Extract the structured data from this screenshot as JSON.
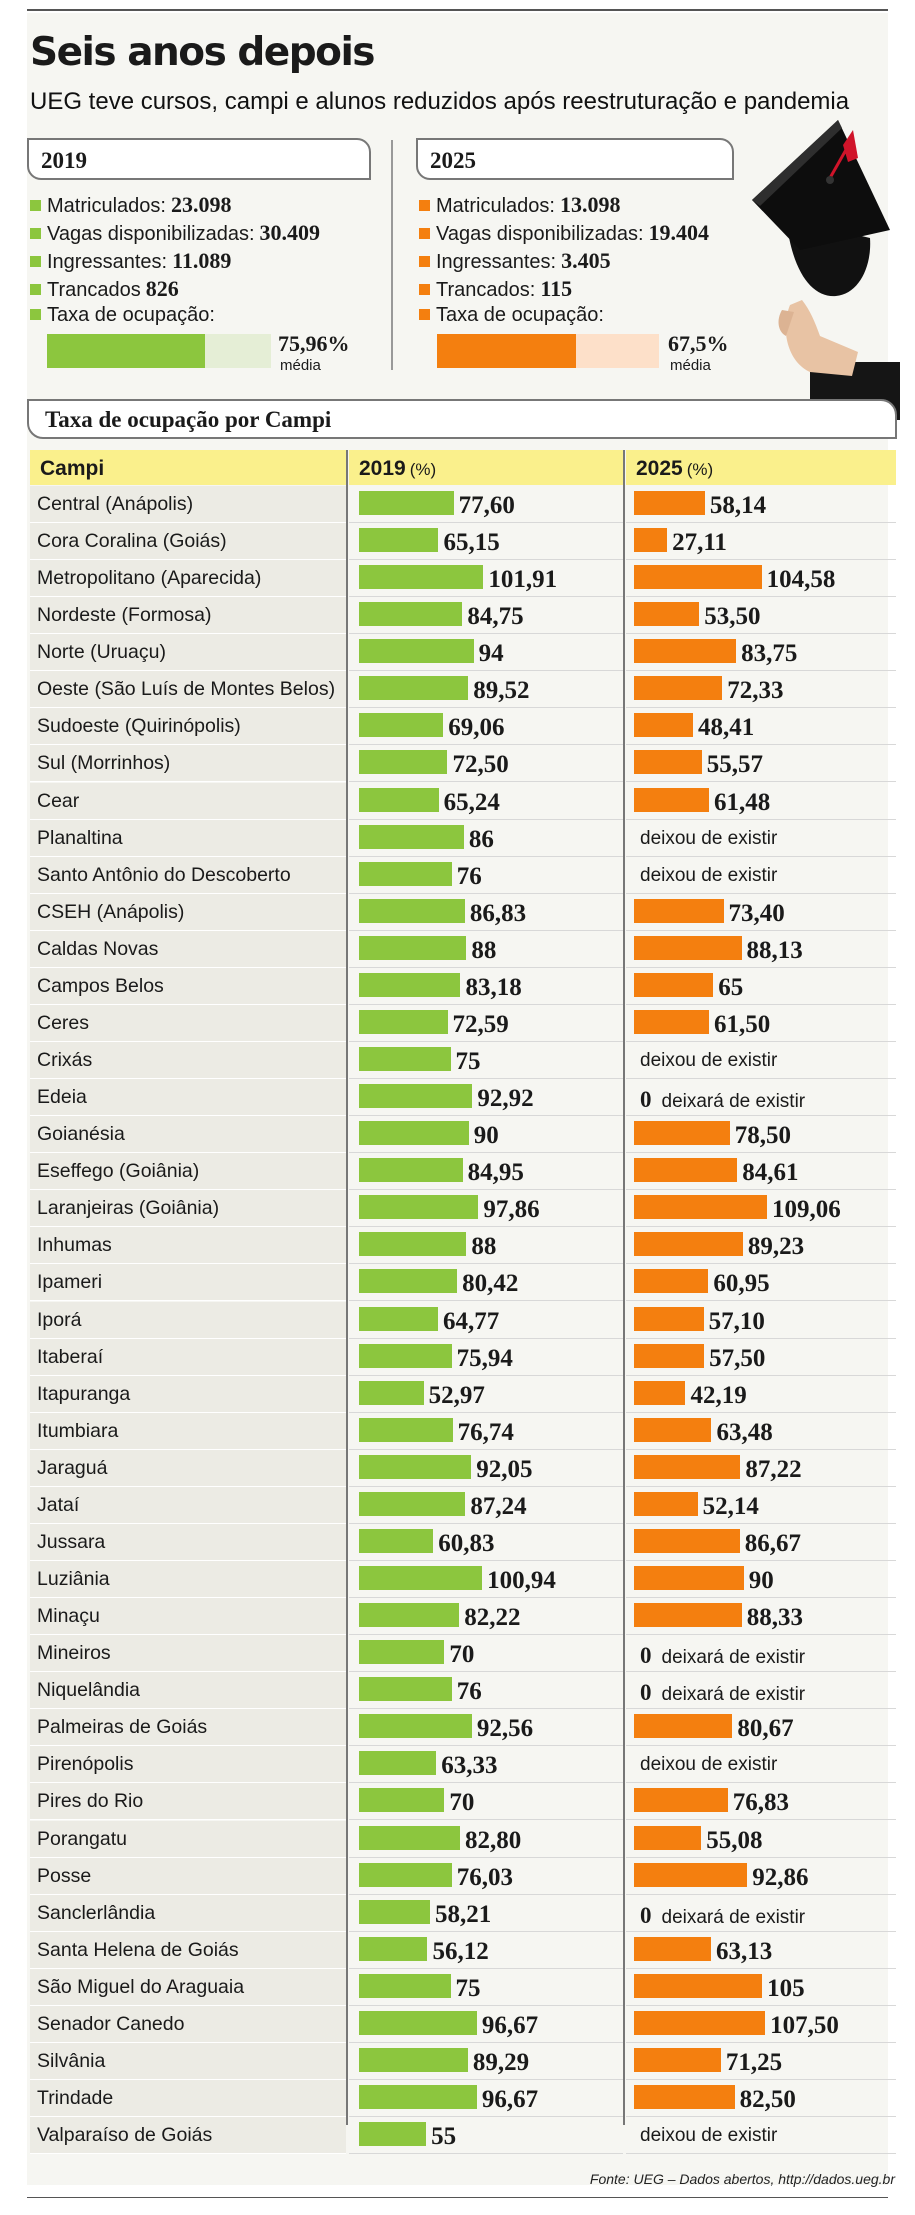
{
  "title": "Seis anos depois",
  "subtitle": "UEG teve cursos, campi e alunos reduzidos após reestruturação e pandemia",
  "colors": {
    "y2019": "#8cc63e",
    "y2025": "#f47f0f",
    "y2019_light": "#e5eed6",
    "y2025_light": "#fde0c9",
    "header_bg": "#faf08c"
  },
  "summary": {
    "y2019": {
      "year_label": "2019",
      "stats": [
        {
          "label": "Matriculados:",
          "value": "23.098"
        },
        {
          "label": "Vagas disponibilizadas:",
          "value": "30.409"
        },
        {
          "label": "Ingressantes:",
          "value": "11.089"
        },
        {
          "label": "Trancados",
          "value": "826"
        }
      ],
      "rate_label": "Taxa de ocupação:",
      "rate_value": "75,96%",
      "rate_number": 75.96,
      "media_label": "média"
    },
    "y2025": {
      "year_label": "2025",
      "stats": [
        {
          "label": "Matriculados:",
          "value": "13.098"
        },
        {
          "label": "Vagas disponibilizadas:",
          "value": "19.404"
        },
        {
          "label": "Ingressantes:",
          "value": "3.405"
        },
        {
          "label": "Trancados:",
          "value": "115"
        }
      ],
      "rate_label": "Taxa de ocupação:",
      "rate_value": "67,5%",
      "rate_number": 67.5,
      "media_label": "média"
    }
  },
  "section_title": "Taxa de ocupação por Campi",
  "table_header": {
    "campi": "Campi",
    "y2019": "2019",
    "y2025": "2025",
    "unit": "(%)"
  },
  "chart_data": {
    "type": "bar",
    "title": "Taxa de ocupação por Campi",
    "categories": [
      "Central (Anápolis)",
      "Cora Coralina (Goiás)",
      "Metropolitano (Aparecida)",
      "Nordeste (Formosa)",
      "Norte (Uruaçu)",
      "Oeste (São Luís de Montes Belos)",
      "Sudoeste (Quirinópolis)",
      "Sul (Morrinhos)",
      "Cear",
      "Planaltina",
      "Santo Antônio do Descoberto",
      "CSEH (Anápolis)",
      "Caldas Novas",
      "Campos Belos",
      "Ceres",
      "Crixás",
      "Edeia",
      "Goianésia",
      "Eseffego (Goiânia)",
      "Laranjeiras (Goiânia)",
      "Inhumas",
      "Ipameri",
      "Iporá",
      "Itaberaí",
      "Itapuranga",
      "Itumbiara",
      "Jaraguá",
      "Jataí",
      "Jussara",
      "Luziânia",
      "Minaçu",
      "Mineiros",
      "Niquelândia",
      "Palmeiras de Goiás",
      "Pirenópolis",
      "Pires do Rio",
      "Porangatu",
      "Posse",
      "Sanclerlândia",
      "Santa Helena de Goiás",
      "São Miguel do Araguaia",
      "Senador Canedo",
      "Silvânia",
      "Trindade",
      "Valparaíso de Goiás"
    ],
    "series": [
      {
        "name": "2019",
        "values": [
          77.6,
          65.15,
          101.91,
          84.75,
          94,
          89.52,
          69.06,
          72.5,
          65.24,
          86,
          76,
          86.83,
          88,
          83.18,
          72.59,
          75,
          92.92,
          90,
          84.95,
          97.86,
          88,
          80.42,
          64.77,
          75.94,
          52.97,
          76.74,
          92.05,
          87.24,
          60.83,
          100.94,
          82.22,
          70,
          76,
          92.56,
          63.33,
          70,
          82.8,
          76.03,
          58.21,
          56.12,
          75,
          96.67,
          89.29,
          96.67,
          55
        ],
        "labels": [
          "77,60",
          "65,15",
          "101,91",
          "84,75",
          "94",
          "89,52",
          "69,06",
          "72,50",
          "65,24",
          "86",
          "76",
          "86,83",
          "88",
          "83,18",
          "72,59",
          "75",
          "92,92",
          "90",
          "84,95",
          "97,86",
          "88",
          "80,42",
          "64,77",
          "75,94",
          "52,97",
          "76,74",
          "92,05",
          "87,24",
          "60,83",
          "100,94",
          "82,22",
          "70",
          "76",
          "92,56",
          "63,33",
          "70",
          "82,80",
          "76,03",
          "58,21",
          "56,12",
          "75",
          "96,67",
          "89,29",
          "96,67",
          "55"
        ]
      },
      {
        "name": "2025",
        "values": [
          58.14,
          27.11,
          104.58,
          53.5,
          83.75,
          72.33,
          48.41,
          55.57,
          61.48,
          null,
          null,
          73.4,
          88.13,
          65,
          61.5,
          null,
          0,
          78.5,
          84.61,
          109.06,
          89.23,
          60.95,
          57.1,
          57.5,
          42.19,
          63.48,
          87.22,
          52.14,
          86.67,
          90,
          88.33,
          0,
          0,
          80.67,
          null,
          76.83,
          55.08,
          92.86,
          0,
          63.13,
          105,
          107.5,
          71.25,
          82.5,
          null
        ],
        "labels": [
          "58,14",
          "27,11",
          "104,58",
          "53,50",
          "83,75",
          "72,33",
          "48,41",
          "55,57",
          "61,48",
          "",
          "",
          "73,40",
          "88,13",
          "65",
          "61,50",
          "",
          "0",
          "78,50",
          "84,61",
          "109,06",
          "89,23",
          "60,95",
          "57,10",
          "57,50",
          "42,19",
          "63,48",
          "87,22",
          "52,14",
          "86,67",
          "90",
          "88,33",
          "0",
          "0",
          "80,67",
          "",
          "76,83",
          "55,08",
          "92,86",
          "0",
          "63,13",
          "105",
          "107,50",
          "71,25",
          "82,50",
          ""
        ],
        "notes": [
          "",
          "",
          "",
          "",
          "",
          "",
          "",
          "",
          "",
          "deixou de existir",
          "deixou de existir",
          "",
          "",
          "",
          "",
          "deixou de existir",
          "deixará de existir",
          "",
          "",
          "",
          "",
          "",
          "",
          "",
          "",
          "",
          "",
          "",
          "",
          "",
          "",
          "deixará de existir",
          "deixará de existir",
          "",
          "deixou de existir",
          "",
          "",
          "",
          "deixará de existir",
          "",
          "",
          "",
          "",
          "",
          "deixou de existir"
        ]
      }
    ]
  },
  "source": "Fonte: UEG – Dados abertos, http://dados.ueg.br"
}
